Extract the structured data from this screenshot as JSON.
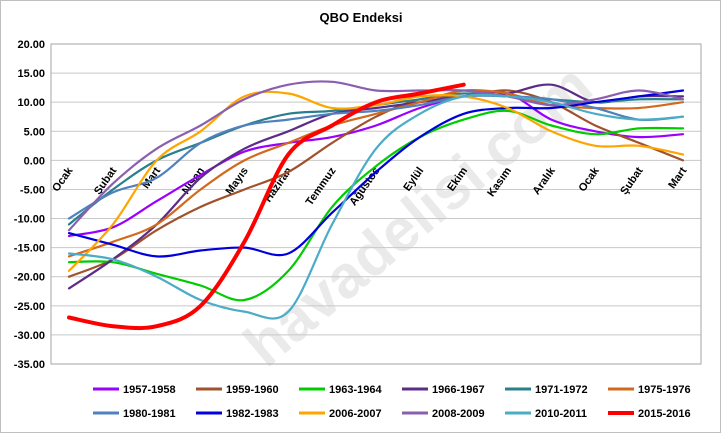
{
  "chart_data": {
    "type": "line",
    "title": "QBO  Endeksi",
    "watermark": "havadelisi.com",
    "xlabel": "",
    "ylabel": "",
    "ylim": [
      -35,
      20
    ],
    "ytick_step": 5,
    "grid": true,
    "legend_position": "bottom",
    "categories": [
      "Ocak",
      "Şubat",
      "Mart",
      "Nisan",
      "Mayıs",
      "Haziran",
      "Temmuz",
      "Ağustos",
      "Eylül",
      "Ekim",
      "Kasım",
      "Aralık",
      "Ocak",
      "Şubat",
      "Mart"
    ],
    "series": [
      {
        "name": "1957-1958",
        "color": "#9900ff",
        "values": [
          -13,
          -11.5,
          -7,
          -2.5,
          1.5,
          3,
          4,
          6,
          9,
          11,
          11.5,
          7,
          5,
          4,
          4.5
        ]
      },
      {
        "name": "1959-1960",
        "color": "#a0522d",
        "values": [
          -20,
          -17,
          -12,
          -8,
          -5,
          -2,
          3,
          7.5,
          10.5,
          11,
          12,
          10,
          6,
          3,
          0
        ]
      },
      {
        "name": "1963-1964",
        "color": "#00cc00",
        "values": [
          -17.5,
          -17.5,
          -19.5,
          -21.5,
          -24,
          -19,
          -8,
          -1,
          4,
          7,
          8.5,
          6,
          4.5,
          5.5,
          5.5
        ]
      },
      {
        "name": "1966-1967",
        "color": "#5b2d86",
        "values": [
          -22,
          -17,
          -11,
          -3,
          2,
          5,
          8,
          9,
          10,
          11,
          11.5,
          13,
          10,
          11,
          11
        ]
      },
      {
        "name": "1971-1972",
        "color": "#2a7f8c",
        "values": [
          -11,
          -5,
          0,
          3,
          6,
          8,
          8.5,
          9.5,
          10.5,
          11.5,
          11,
          10.5,
          10,
          10.5,
          10.5
        ]
      },
      {
        "name": "1975-1976",
        "color": "#d2691e",
        "values": [
          -16.5,
          -14,
          -11,
          -5,
          0,
          3,
          6,
          8,
          10,
          12,
          11.5,
          9.5,
          9,
          9,
          10
        ]
      },
      {
        "name": "1980-1981",
        "color": "#4f81bd",
        "values": [
          -10,
          -5.5,
          -3,
          3,
          6,
          7,
          8,
          8.5,
          9.5,
          11,
          11,
          10.5,
          9,
          7,
          7.5
        ]
      },
      {
        "name": "1982-1983",
        "color": "#0000dd",
        "values": [
          -12.5,
          -14.5,
          -16.5,
          -15.5,
          -15,
          -16,
          -9,
          -2,
          4,
          8,
          9,
          9,
          10,
          11,
          12
        ]
      },
      {
        "name": "2006-2007",
        "color": "#ffa500",
        "values": [
          -19,
          -11,
          0,
          5,
          11,
          11.5,
          9,
          9.5,
          11,
          11,
          9,
          5,
          2.5,
          2.5,
          1
        ]
      },
      {
        "name": "2008-2009",
        "color": "#8a5fb0",
        "values": [
          -12,
          -4,
          2,
          6,
          10.5,
          13,
          13.5,
          12,
          12,
          12,
          11,
          9.5,
          10.5,
          12,
          10.5
        ]
      },
      {
        "name": "2010-2011",
        "color": "#4bacc6",
        "values": [
          -16,
          -17,
          -20,
          -24,
          -26,
          -26,
          -11,
          2,
          8,
          11,
          11,
          10,
          8,
          7,
          7.5
        ]
      },
      {
        "name": "2015-2016",
        "color": "#ff0000",
        "values": [
          -27,
          -28.5,
          -28.5,
          -25,
          -14,
          1,
          6,
          10,
          11.5,
          13,
          null,
          null,
          null,
          null,
          null
        ]
      }
    ]
  }
}
